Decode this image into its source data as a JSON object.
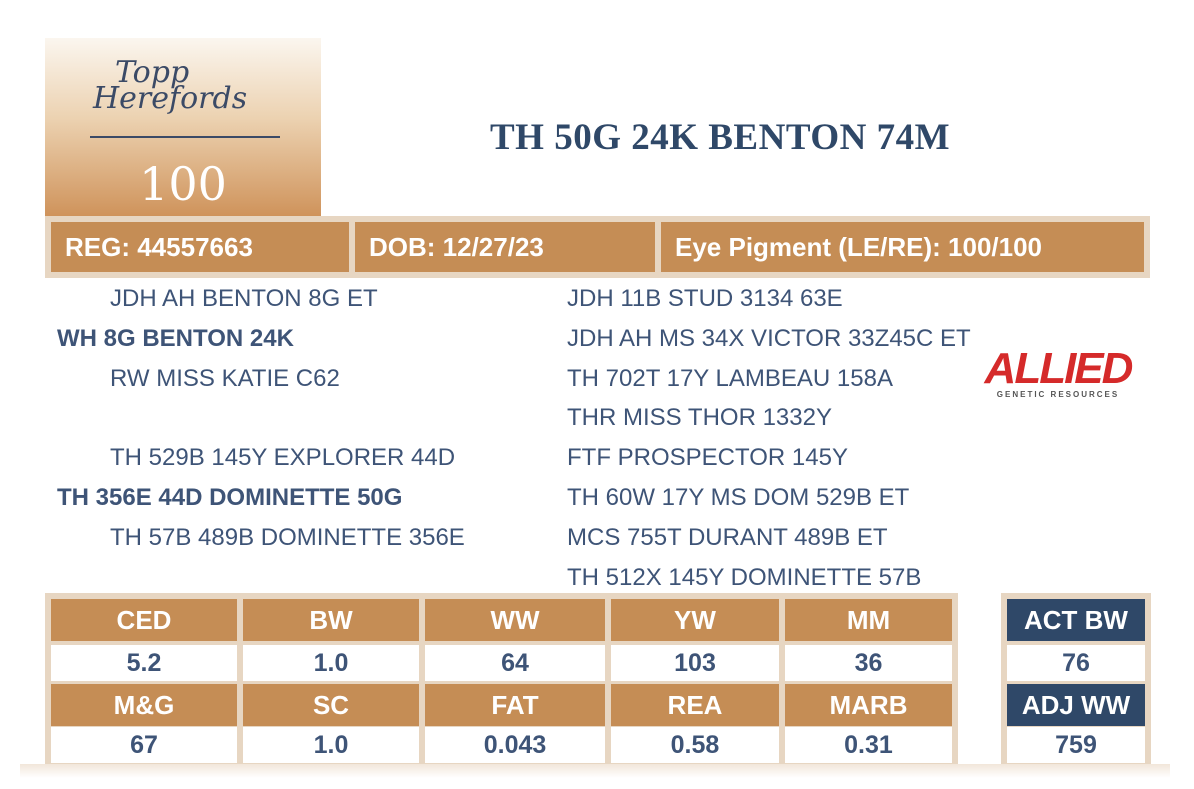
{
  "logo": {
    "script_line1": "Topp",
    "script_line2": "Herefords"
  },
  "lot_number": "100",
  "animal_name": "TH 50G 24K BENTON 74M",
  "info": {
    "reg": "REG: 44557663",
    "dob": "DOB: 12/27/23",
    "eye": "Eye Pigment (LE/RE): 100/100"
  },
  "pedigree": {
    "sire_sire": "JDH AH BENTON 8G ET",
    "sire": "WH 8G BENTON 24K",
    "sire_dam": "RW MISS KATIE C62",
    "dam_sire": "TH 529B 145Y EXPLORER 44D",
    "dam": "TH 356E 44D DOMINETTE 50G",
    "dam_dam": "TH 57B 489B DOMINETTE 356E",
    "right": [
      "JDH 11B STUD 3134 63E",
      "JDH AH MS 34X VICTOR 33Z45C ET",
      "TH 702T 17Y LAMBEAU 158A",
      "THR MISS THOR 1332Y",
      "FTF PROSPECTOR 145Y",
      "TH 60W 17Y MS DOM 529B ET",
      "MCS 755T DURANT 489B ET",
      "TH 512X 145Y DOMINETTE 57B"
    ]
  },
  "sponsor_logo": {
    "word": "ALLIED",
    "sub": "GENETIC RESOURCES"
  },
  "epd": {
    "row1_headers": [
      "CED",
      "BW",
      "WW",
      "YW",
      "MM"
    ],
    "row1_values": [
      "5.2",
      "1.0",
      "64",
      "103",
      "36"
    ],
    "row2_headers": [
      "M&G",
      "SC",
      "FAT",
      "REA",
      "MARB"
    ],
    "row2_values": [
      "67",
      "1.0",
      "0.043",
      "0.58",
      "0.31"
    ]
  },
  "actuals": {
    "act_bw_label": "ACT BW",
    "act_bw_value": "76",
    "adj_ww_label": "ADJ WW",
    "adj_ww_value": "759"
  },
  "colors": {
    "tan": "#c58d55",
    "navy": "#2f4868",
    "text": "#3e5477",
    "frame": "#e7d6c2"
  }
}
